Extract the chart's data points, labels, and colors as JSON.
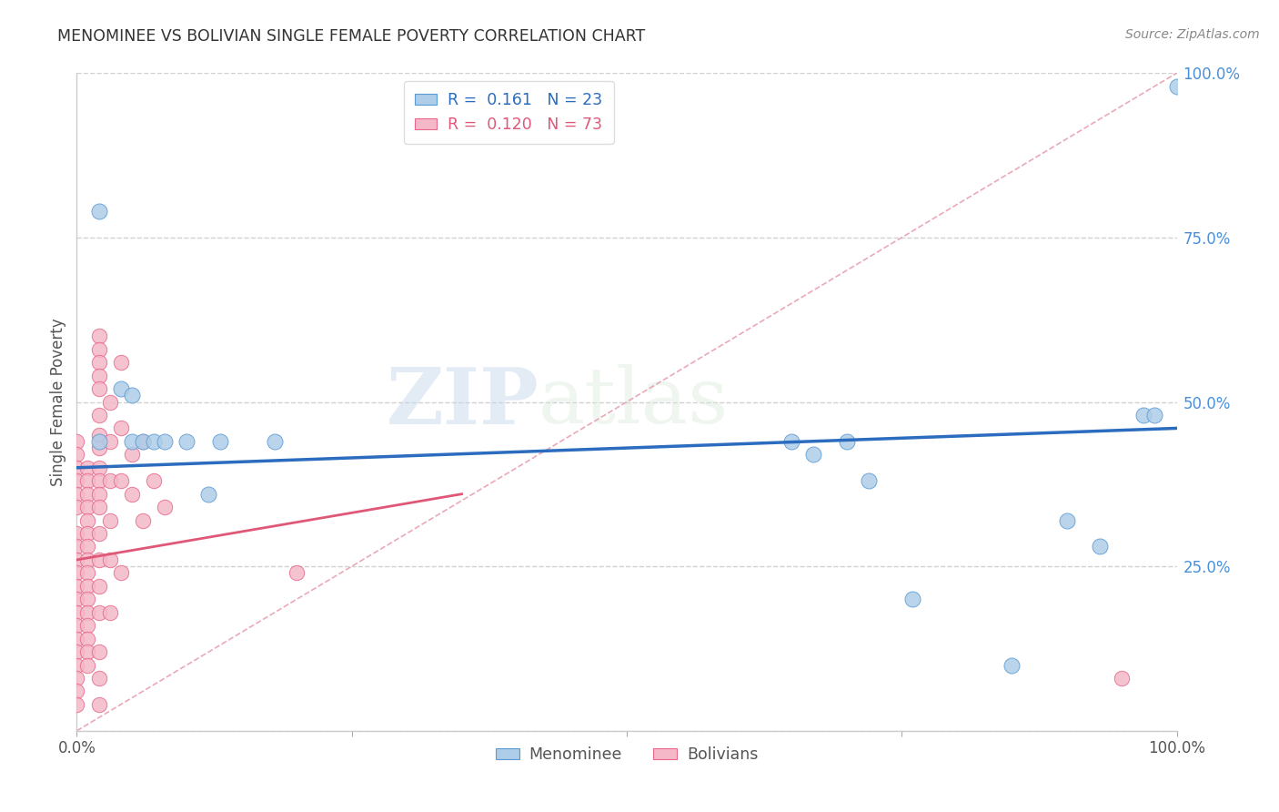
{
  "title": "MENOMINEE VS BOLIVIAN SINGLE FEMALE POVERTY CORRELATION CHART",
  "source": "Source: ZipAtlas.com",
  "ylabel": "Single Female Poverty",
  "legend_blue_R": "0.161",
  "legend_blue_N": "23",
  "legend_pink_R": "0.120",
  "legend_pink_N": "73",
  "legend_label_blue": "Menominee",
  "legend_label_pink": "Bolivians",
  "watermark_zip": "ZIP",
  "watermark_atlas": "atlas",
  "blue_color": "#aecde8",
  "blue_edge_color": "#5b9bd5",
  "pink_color": "#f4b8c8",
  "pink_edge_color": "#e8688a",
  "blue_line_color": "#2b6cbf",
  "pink_line_color": "#e05878",
  "diag_line_color": "#e8a0b0",
  "R_N_color_blue": "#2b6cbf",
  "R_N_color_pink": "#e05878",
  "blue_scatter": [
    [
      2,
      79
    ],
    [
      2,
      44
    ],
    [
      4,
      52
    ],
    [
      5,
      51
    ],
    [
      5,
      44
    ],
    [
      6,
      44
    ],
    [
      7,
      44
    ],
    [
      8,
      44
    ],
    [
      10,
      44
    ],
    [
      12,
      36
    ],
    [
      13,
      44
    ],
    [
      18,
      44
    ],
    [
      65,
      44
    ],
    [
      67,
      42
    ],
    [
      70,
      44
    ],
    [
      72,
      38
    ],
    [
      76,
      20
    ],
    [
      85,
      10
    ],
    [
      90,
      32
    ],
    [
      93,
      28
    ],
    [
      97,
      48
    ],
    [
      98,
      48
    ],
    [
      100,
      98
    ]
  ],
  "pink_scatter": [
    [
      0,
      44
    ],
    [
      0,
      42
    ],
    [
      0,
      40
    ],
    [
      0,
      38
    ],
    [
      0,
      36
    ],
    [
      0,
      34
    ],
    [
      0,
      30
    ],
    [
      0,
      28
    ],
    [
      0,
      26
    ],
    [
      0,
      24
    ],
    [
      0,
      22
    ],
    [
      0,
      20
    ],
    [
      0,
      18
    ],
    [
      0,
      16
    ],
    [
      0,
      14
    ],
    [
      0,
      12
    ],
    [
      0,
      10
    ],
    [
      0,
      8
    ],
    [
      0,
      6
    ],
    [
      0,
      4
    ],
    [
      1,
      40
    ],
    [
      1,
      38
    ],
    [
      1,
      36
    ],
    [
      1,
      34
    ],
    [
      1,
      32
    ],
    [
      1,
      30
    ],
    [
      1,
      28
    ],
    [
      1,
      26
    ],
    [
      1,
      24
    ],
    [
      1,
      22
    ],
    [
      1,
      20
    ],
    [
      1,
      18
    ],
    [
      1,
      16
    ],
    [
      1,
      14
    ],
    [
      1,
      12
    ],
    [
      1,
      10
    ],
    [
      2,
      60
    ],
    [
      2,
      58
    ],
    [
      2,
      56
    ],
    [
      2,
      54
    ],
    [
      2,
      52
    ],
    [
      2,
      48
    ],
    [
      2,
      45
    ],
    [
      2,
      43
    ],
    [
      2,
      40
    ],
    [
      2,
      38
    ],
    [
      2,
      36
    ],
    [
      2,
      34
    ],
    [
      2,
      30
    ],
    [
      2,
      26
    ],
    [
      2,
      22
    ],
    [
      2,
      18
    ],
    [
      2,
      12
    ],
    [
      2,
      8
    ],
    [
      2,
      4
    ],
    [
      3,
      50
    ],
    [
      3,
      44
    ],
    [
      3,
      38
    ],
    [
      3,
      32
    ],
    [
      3,
      26
    ],
    [
      3,
      18
    ],
    [
      4,
      56
    ],
    [
      4,
      46
    ],
    [
      4,
      38
    ],
    [
      4,
      24
    ],
    [
      5,
      42
    ],
    [
      5,
      36
    ],
    [
      6,
      44
    ],
    [
      6,
      32
    ],
    [
      7,
      38
    ],
    [
      8,
      34
    ],
    [
      20,
      24
    ],
    [
      95,
      8
    ]
  ],
  "blue_trend_x": [
    0,
    100
  ],
  "blue_trend_y": [
    40,
    46
  ],
  "pink_trend_x": [
    0,
    35
  ],
  "pink_trend_y": [
    26,
    36
  ],
  "diag_trend_x": [
    0,
    100
  ],
  "diag_trend_y": [
    0,
    100
  ],
  "xlim": [
    0,
    100
  ],
  "ylim": [
    0,
    100
  ],
  "yticks": [
    0,
    25,
    50,
    75,
    100
  ],
  "ytick_labels": [
    "",
    "25.0%",
    "50.0%",
    "75.0%",
    "100.0%"
  ],
  "xtick_positions": [
    0,
    25,
    50,
    75,
    100
  ],
  "xtick_labels_bottom": [
    "0.0%",
    "",
    "",
    "",
    "100.0%"
  ]
}
